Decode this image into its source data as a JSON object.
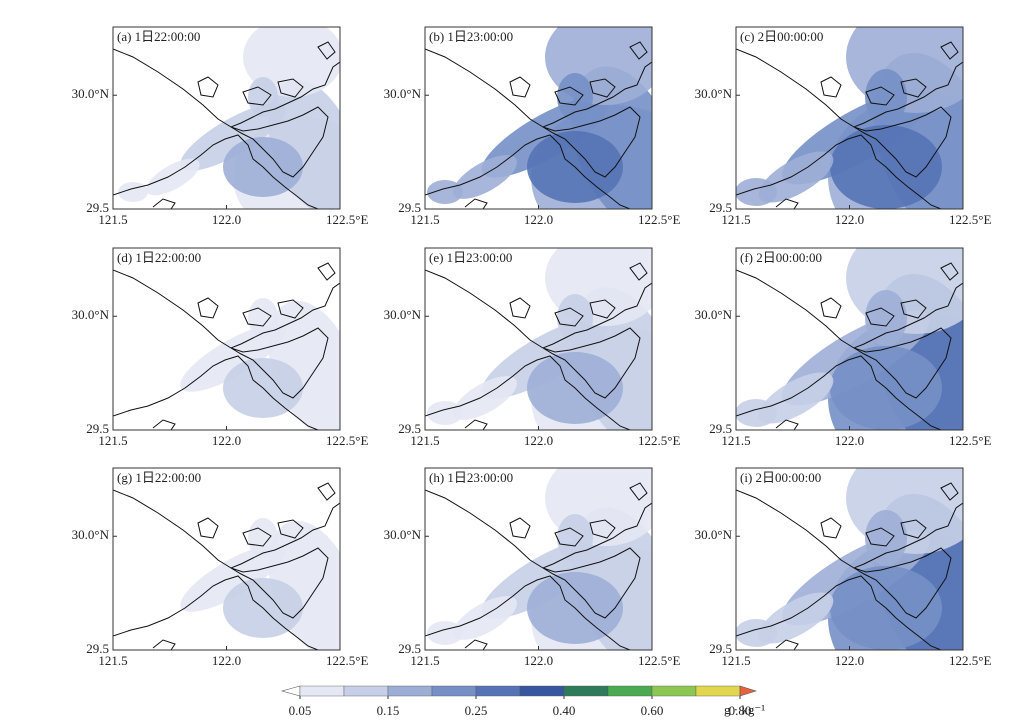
{
  "axes": {
    "xlim": [
      121.5,
      122.5
    ],
    "ylim": [
      29.5,
      30.3
    ],
    "xticks": [
      {
        "value": 121.5,
        "label": "121.5"
      },
      {
        "value": 122,
        "label": "122.0"
      },
      {
        "value": 122.5,
        "label": "122.5°E"
      }
    ],
    "yticks": [
      29.5,
      {
        "value": 30,
        "label": "30.0°N"
      }
    ]
  },
  "panels": [
    {
      "label": "(a) 1日22:00:00"
    },
    {
      "label": "(b) 1日23:00:00"
    },
    {
      "label": "(c) 2日00:00:00"
    },
    {
      "label": "(d) 1日22:00:00"
    },
    {
      "label": "(e) 1日23:00:00"
    },
    {
      "label": "(f) 2日00:00:00"
    },
    {
      "label": "(g) 1日22:00:00"
    },
    {
      "label": "(h) 1日23:00:00"
    },
    {
      "label": "(i) 2日00:00:00"
    }
  ],
  "colorbar": {
    "levels": [
      0.05,
      0.1,
      0.15,
      0.2,
      0.25,
      0.3,
      0.4,
      0.5,
      0.6,
      0.7,
      0.8
    ],
    "colors": [
      "#ffffff",
      "#e4e8f4",
      "#c6cfe7",
      "#9daed6",
      "#7690c6",
      "#5573b5",
      "#3656a0",
      "#2e7b5c",
      "#4caa52",
      "#8dc653",
      "#e2d64f",
      "#e8603c"
    ],
    "ticks": [
      0.05,
      0.15,
      0.25,
      {
        "value": 0.4,
        "label": "0.40"
      },
      {
        "value": 0.6,
        "label": "0.60"
      },
      {
        "value": 0.8,
        "label": "0.80"
      }
    ],
    "units": "g · kg⁻¹"
  }
}
